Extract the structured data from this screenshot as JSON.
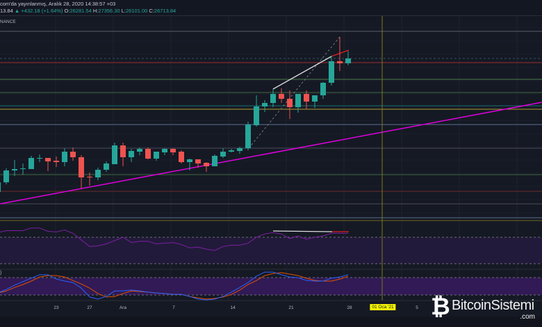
{
  "header": {
    "published": "com'da yayınlanmış, Aralık 28, 2020 14:38:57 +03",
    "last": "13.84",
    "change": "+432.18 (+1.64%)",
    "o_label": "O:",
    "o": "26281.54",
    "h_label": "H:",
    "h": "27356.30",
    "l_label": "L:",
    "l": "26101.00",
    "c_label": "C:",
    "c": "26713.84",
    "exchange": "NANCE"
  },
  "stoch_label": ")",
  "x_axis": [
    "23",
    "27",
    "Ara",
    "7",
    "14",
    "21",
    "28",
    "01 Oca '21",
    "5"
  ],
  "logo": {
    "name": "BitcoinSistemi",
    "domain": ".com"
  },
  "colors": {
    "up": "#26a69a",
    "down": "#ef5350",
    "trend": "#e000e0",
    "rsi": "#7b1fa2",
    "stochK": "#2962ff",
    "stochD": "#e65100",
    "vline": "#7a7a20"
  },
  "chart_data": {
    "type": "candlestick",
    "candles": [
      [
        14809,
        15677,
        14809,
        15677
      ],
      [
        15677,
        16917,
        15491,
        16731
      ],
      [
        16731,
        17661,
        16235,
        16855
      ],
      [
        16855,
        17351,
        16359,
        16917
      ],
      [
        16855,
        18033,
        16855,
        17847
      ],
      [
        17785,
        18157,
        17475,
        17847
      ],
      [
        17847,
        17847,
        16669,
        17537
      ],
      [
        17599,
        17971,
        17041,
        17475
      ],
      [
        17475,
        18715,
        17103,
        18405
      ],
      [
        18405,
        18777,
        17599,
        17909
      ],
      [
        17909,
        18095,
        15119,
        16111
      ],
      [
        16173,
        16545,
        15367,
        16111
      ],
      [
        16111,
        16979,
        15863,
        16793
      ],
      [
        16793,
        17537,
        16607,
        17351
      ],
      [
        17289,
        19211,
        17289,
        18963
      ],
      [
        18963,
        19211,
        17103,
        17909
      ],
      [
        17909,
        18653,
        17475,
        18467
      ],
      [
        18405,
        18777,
        18095,
        18653
      ],
      [
        18653,
        18777,
        17723,
        17785
      ],
      [
        17785,
        18405,
        17599,
        18405
      ],
      [
        18343,
        18715,
        18095,
        18653
      ],
      [
        18653,
        18715,
        18095,
        18343
      ],
      [
        18405,
        18529,
        17351,
        17475
      ],
      [
        17475,
        17785,
        16731,
        17723
      ],
      [
        17723,
        17723,
        16979,
        17351
      ],
      [
        17413,
        17475,
        16607,
        17103
      ],
      [
        17103,
        18157,
        17103,
        18033
      ],
      [
        17971,
        18715,
        17847,
        18405
      ],
      [
        18405,
        18653,
        18343,
        18529
      ],
      [
        18467,
        18839,
        18219,
        18715
      ],
      [
        18715,
        21071,
        18529,
        20823
      ],
      [
        20761,
        23427,
        20637,
        22435
      ],
      [
        22435,
        22993,
        21939,
        22745
      ],
      [
        22745,
        23985,
        22373,
        23551
      ],
      [
        23551,
        24047,
        22745,
        23117
      ],
      [
        23117,
        23861,
        21319,
        22373
      ],
      [
        22373,
        23551,
        21877,
        23551
      ],
      [
        23551,
        23861,
        22187,
        22869
      ],
      [
        22869,
        23427,
        22311,
        23427
      ],
      [
        23427,
        24605,
        23117,
        24543
      ],
      [
        24543,
        26961,
        24295,
        26465
      ],
      [
        26465,
        28635,
        25597,
        26279
      ],
      [
        26281.54,
        27356.3,
        26101.0,
        26713.84
      ]
    ],
    "levels": [
      {
        "price": 29131,
        "color": "#5d606b"
      },
      {
        "price": 26713.84,
        "color": "#2a5560",
        "dashed": true
      },
      {
        "price": 26341,
        "color": "#a03030"
      },
      {
        "price": 24853,
        "color": "#4a7a4a"
      },
      {
        "price": 23675,
        "color": "#3f6a3f"
      },
      {
        "price": 22497,
        "color": "#157070"
      },
      {
        "price": 22187,
        "color": "#b0a030"
      },
      {
        "price": 20823,
        "color": "#5a7090"
      },
      {
        "price": 18715,
        "color": "#4a4d58"
      },
      {
        "price": 16359,
        "color": "#3f6a3f"
      },
      {
        "price": 14871,
        "color": "#6a2a2a"
      },
      {
        "price": 13755,
        "color": "#4a4d58"
      },
      {
        "price": 12515,
        "color": "#5a7090"
      }
    ],
    "rsi": [
      77,
      80,
      80,
      80,
      84,
      84,
      79,
      78,
      81,
      76,
      66,
      56,
      57,
      60,
      65,
      70,
      62,
      64,
      64,
      60,
      61,
      62,
      59,
      54,
      55,
      52,
      50,
      56,
      58,
      58,
      61,
      70,
      75,
      77,
      75,
      68,
      72,
      67,
      70,
      72,
      76,
      76,
      76
    ],
    "rsi_bands": [
      70,
      30
    ],
    "stoch_k": [
      27,
      39,
      54,
      66,
      78,
      90,
      90,
      75,
      68,
      63,
      44,
      13,
      6,
      15,
      34,
      34,
      37,
      34,
      30,
      27,
      25,
      22,
      22,
      15,
      6,
      3,
      6,
      15,
      30,
      46,
      63,
      85,
      99,
      99,
      90,
      82,
      80,
      70,
      68,
      68,
      78,
      82,
      90
    ],
    "stoch_d": [
      27,
      34,
      46,
      56,
      68,
      82,
      87,
      87,
      82,
      70,
      58,
      44,
      25,
      13,
      15,
      25,
      34,
      32,
      30,
      27,
      25,
      22,
      22,
      15,
      10,
      6,
      8,
      13,
      22,
      37,
      56,
      70,
      87,
      94,
      97,
      92,
      87,
      78,
      70,
      68,
      68,
      75,
      85
    ],
    "stoch_bands": [
      80,
      20
    ]
  }
}
